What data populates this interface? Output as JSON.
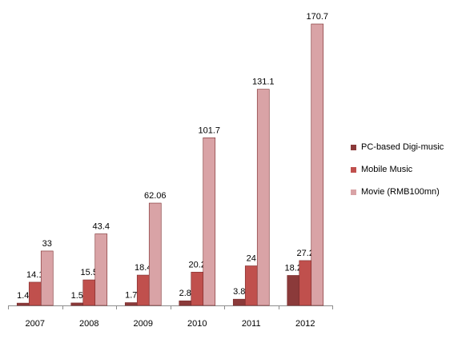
{
  "chart_data": {
    "type": "bar",
    "categories": [
      "2007",
      "2008",
      "2009",
      "2010",
      "2011",
      "2012"
    ],
    "series": [
      {
        "name": "PC-based Digi-music",
        "values": [
          1.4,
          1.5,
          1.7,
          2.8,
          3.8,
          18.2
        ],
        "labels": [
          "1.4",
          "1.5",
          "1.7",
          "2.8",
          "3.8",
          "18.2"
        ],
        "color": "#8B3A3A"
      },
      {
        "name": "Mobile Music",
        "values": [
          14.1,
          15.5,
          18.4,
          20.2,
          24,
          27.2
        ],
        "labels": [
          "14.1",
          "15.5",
          "18.4",
          "20.2",
          "24",
          "27.2"
        ],
        "color": "#C0504D"
      },
      {
        "name": "Movie (RMB100mn)",
        "values": [
          33,
          43.4,
          62.06,
          101.7,
          131.1,
          170.7
        ],
        "labels": [
          "33",
          "43.4",
          "62.06",
          "101.7",
          "131.1",
          "170.7"
        ],
        "color": "#D9A3A6"
      }
    ],
    "title": "",
    "xlabel": "",
    "ylabel": "",
    "ylim": [
      0,
      170.7
    ],
    "grid": false,
    "legend_position": "right"
  }
}
